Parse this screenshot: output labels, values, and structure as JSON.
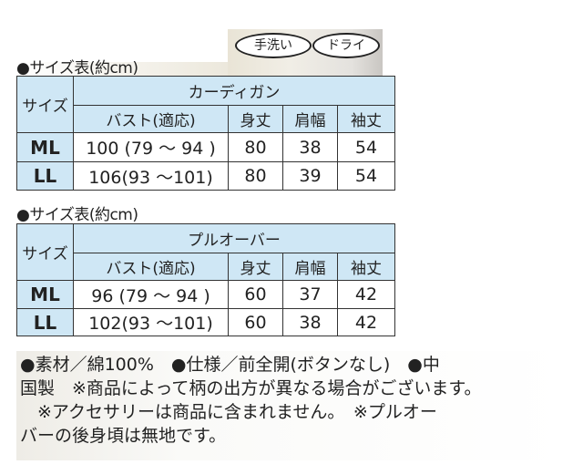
{
  "badges": [
    "手洗い",
    "ドライ"
  ],
  "tables": [
    {
      "title": "●サイズ表(約cm)",
      "size_label": "サイズ",
      "product": "カーディガン",
      "columns": [
        "バスト(適応)",
        "身丈",
        "肩幅",
        "袖丈"
      ],
      "rows": [
        {
          "size": "ML",
          "values": [
            "100 (79 ～ 94 )",
            "80",
            "38",
            "54"
          ]
        },
        {
          "size": "LL",
          "values": [
            "106(93 ～101)",
            "80",
            "39",
            "54"
          ]
        }
      ]
    },
    {
      "title": "●サイズ表(約cm)",
      "size_label": "サイズ",
      "product": "プルオーバー",
      "columns": [
        "バスト(適応)",
        "身丈",
        "肩幅",
        "袖丈"
      ],
      "rows": [
        {
          "size": "ML",
          "values": [
            "96 (79 ～ 94 )",
            "60",
            "37",
            "42"
          ]
        },
        {
          "size": "LL",
          "values": [
            "102(93 ～101)",
            "60",
            "38",
            "42"
          ]
        }
      ]
    }
  ],
  "notes": [
    "●素材／綿100%　●仕様／前全開(ボタンなし)　●中",
    "国製　※商品によって柄の出方が異なる場合がございます。",
    "　※アクセサリーは商品に含まれません。　※プルオー",
    "バーの後身頃は無地です。"
  ]
}
